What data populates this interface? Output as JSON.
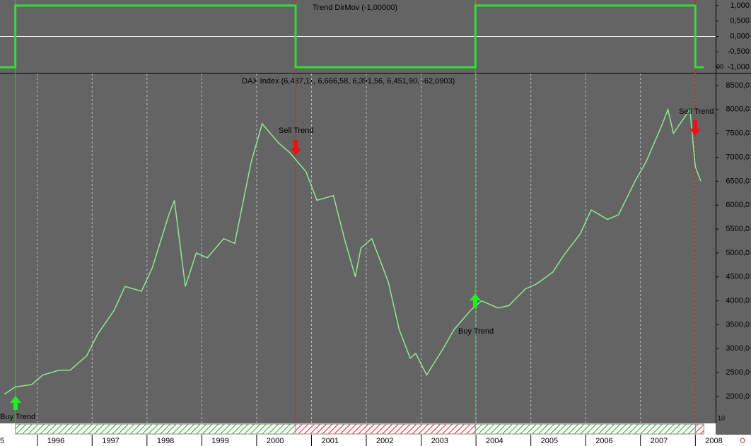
{
  "chart_data": [
    {
      "type": "line",
      "title": "Trend DirMov (-1,00000)",
      "x": [
        1995.32,
        1995.6,
        1995.6,
        2000.71,
        2000.71,
        2003.99,
        2003.99,
        2008.0,
        2008.0,
        2008.15
      ],
      "values": [
        -1,
        -1,
        1,
        1,
        -1,
        -1,
        1,
        1,
        -1,
        -1
      ],
      "color": "#33dd33",
      "xlim": [
        1995.32,
        2008.37
      ],
      "ylim": [
        -1.18,
        1.18
      ],
      "yticks": [
        {
          "value": 1,
          "label": "1,000"
        },
        {
          "value": 0.5,
          "label": "0,500"
        },
        {
          "value": 0,
          "label": "0,000"
        },
        {
          "value": -0.5,
          "label": "-0,500"
        },
        {
          "value": -1,
          "label": "-1,000"
        }
      ],
      "corner_label": "00"
    },
    {
      "type": "line",
      "title": "DAX Index (6,487,11, 6,666,58, 6,391,56, 6,451,90, -62,0903)",
      "x": [
        1995.4,
        1995.6,
        1995.9,
        1996.1,
        1996.4,
        1996.6,
        1996.9,
        1997.1,
        1997.4,
        1997.6,
        1997.9,
        1998.1,
        1998.4,
        1998.5,
        1998.7,
        1998.9,
        1999.1,
        1999.4,
        1999.6,
        1999.9,
        2000.1,
        2000.4,
        2000.6,
        2000.9,
        2001.1,
        2001.4,
        2001.6,
        2001.8,
        2001.9,
        2002.1,
        2002.4,
        2002.6,
        2002.8,
        2002.9,
        2003.1,
        2003.4,
        2003.6,
        2003.9,
        2004.1,
        2004.4,
        2004.6,
        2004.9,
        2005.1,
        2005.4,
        2005.6,
        2005.9,
        2006.1,
        2006.4,
        2006.6,
        2006.9,
        2007.1,
        2007.4,
        2007.5,
        2007.6,
        2007.9,
        2008.0,
        2008.1
      ],
      "values": [
        2050,
        2200,
        2250,
        2450,
        2550,
        2550,
        2850,
        3300,
        3800,
        4300,
        4200,
        4700,
        5800,
        6100,
        4300,
        5000,
        4900,
        5300,
        5200,
        6900,
        7700,
        7300,
        7100,
        6700,
        6100,
        6200,
        5300,
        4500,
        5100,
        5300,
        4400,
        3400,
        2800,
        2900,
        2450,
        3000,
        3400,
        3800,
        4000,
        3850,
        3900,
        4250,
        4350,
        4600,
        4950,
        5400,
        5900,
        5700,
        5800,
        6500,
        6900,
        7700,
        8000,
        7500,
        8000,
        6800,
        6500
      ],
      "color": "#8fe88f",
      "xlim": [
        1995.32,
        2008.37
      ],
      "xticks": [
        {
          "value": 1995,
          "label": "5"
        },
        1996,
        1997,
        1998,
        1999,
        2000,
        2001,
        2002,
        2003,
        2004,
        2005,
        2006,
        2007,
        2008
      ],
      "ylim": [
        1453,
        8751
      ],
      "yticks": [
        {
          "value": 8500,
          "label": "8500,0"
        },
        {
          "value": 8000,
          "label": "8000,0"
        },
        {
          "value": 7500,
          "label": "7500,0"
        },
        {
          "value": 7000,
          "label": "7000,0"
        },
        {
          "value": 6500,
          "label": "6500,0"
        },
        {
          "value": 6000,
          "label": "6000,0"
        },
        {
          "value": 5500,
          "label": "5500,0"
        },
        {
          "value": 5000,
          "label": "5000,0"
        },
        {
          "value": 4500,
          "label": "4500,0"
        },
        {
          "value": 4000,
          "label": "4000,0"
        },
        {
          "value": 3500,
          "label": "3500,0"
        },
        {
          "value": 3000,
          "label": "3000,0"
        },
        {
          "value": 2500,
          "label": "2500,0"
        },
        {
          "value": 2000,
          "label": "2000,0"
        }
      ],
      "annotations": [
        "Buy Trend",
        "Sell Trend",
        "Buy Trend",
        "Sell Trend"
      ],
      "corner_label": "10"
    }
  ]
}
